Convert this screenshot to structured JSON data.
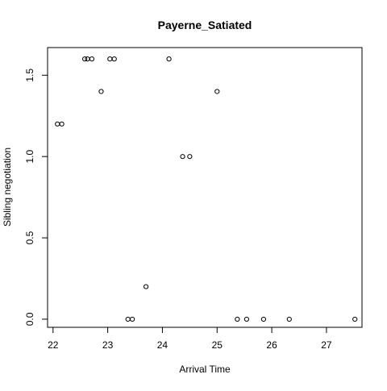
{
  "chart_data": {
    "type": "scatter",
    "title": "Payerne_Satiated",
    "xlabel": "Arrival Time",
    "ylabel": "Sibling negotiation",
    "xlim": [
      21.9,
      27.65
    ],
    "ylim": [
      -0.05,
      1.67
    ],
    "xticks": [
      22,
      23,
      24,
      25,
      26,
      27
    ],
    "xtick_labels": [
      "22",
      "23",
      "24",
      "25",
      "26",
      "27"
    ],
    "yticks": [
      0.0,
      0.5,
      1.0,
      1.5
    ],
    "ytick_labels": [
      "0.0",
      "0.5",
      "1.0",
      "1.5"
    ],
    "grid": false,
    "legend": "none",
    "marker": "open-circle",
    "marker_color": "#000000",
    "points": [
      {
        "x": 22.08,
        "y": 1.2
      },
      {
        "x": 22.16,
        "y": 1.2
      },
      {
        "x": 22.58,
        "y": 1.6
      },
      {
        "x": 22.63,
        "y": 1.6
      },
      {
        "x": 22.71,
        "y": 1.6
      },
      {
        "x": 22.88,
        "y": 1.4
      },
      {
        "x": 23.04,
        "y": 1.6
      },
      {
        "x": 23.12,
        "y": 1.6
      },
      {
        "x": 23.37,
        "y": 0.0
      },
      {
        "x": 23.45,
        "y": 0.0
      },
      {
        "x": 23.7,
        "y": 0.2
      },
      {
        "x": 24.12,
        "y": 1.6
      },
      {
        "x": 24.37,
        "y": 1.0
      },
      {
        "x": 24.5,
        "y": 1.0
      },
      {
        "x": 25.0,
        "y": 1.4
      },
      {
        "x": 25.37,
        "y": 0.0
      },
      {
        "x": 25.54,
        "y": 0.0
      },
      {
        "x": 25.85,
        "y": 0.0
      },
      {
        "x": 26.32,
        "y": 0.0
      },
      {
        "x": 27.52,
        "y": 0.0
      }
    ]
  }
}
